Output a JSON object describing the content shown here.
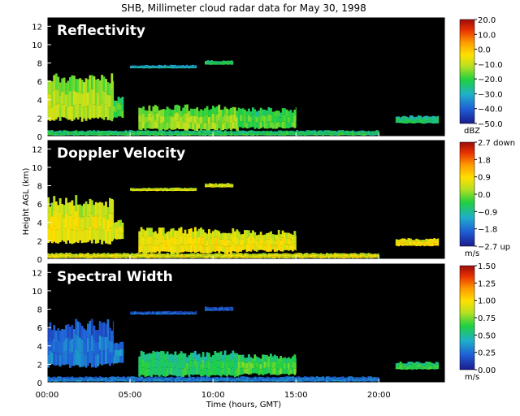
{
  "chart_data": {
    "type": "heatmap",
    "title": "SHB, Millimeter cloud radar data for May 30, 1998",
    "xlabel": "Time (hours, GMT)",
    "ylabel": "Height AGL (km)",
    "x_ticks": [
      "00:00",
      "05:00",
      "10:00",
      "15:00",
      "20:00"
    ],
    "x_tick_hours": [
      0,
      5,
      10,
      15,
      20
    ],
    "xlim": [
      0,
      24
    ],
    "ylim": [
      0,
      13
    ],
    "y_ticks": [
      "0",
      "2",
      "4",
      "6",
      "8",
      "10",
      "12"
    ],
    "background": "#000000",
    "panels": [
      {
        "name": "Reflectivity",
        "unit": "dBZ",
        "colorbar_ticks": [
          "20.0",
          "10.0",
          "0.0",
          "−10.0",
          "−20.0",
          "−30.0",
          "−40.0",
          "−50.0"
        ],
        "range": [
          -50,
          20
        ],
        "regions": [
          {
            "t0": 0.0,
            "t1": 4.0,
            "h0": 1.6,
            "h1": 7.0,
            "level": 0.55
          },
          {
            "t0": 4.0,
            "t1": 4.6,
            "h0": 2.0,
            "h1": 4.5,
            "level": 0.45
          },
          {
            "t0": 5.5,
            "t1": 11.5,
            "h0": 0.6,
            "h1": 3.5,
            "level": 0.52
          },
          {
            "t0": 11.5,
            "t1": 15.0,
            "h0": 0.8,
            "h1": 3.2,
            "level": 0.45
          },
          {
            "t0": 5.0,
            "t1": 9.0,
            "h0": 7.4,
            "h1": 7.8,
            "level": 0.3
          },
          {
            "t0": 9.5,
            "t1": 11.2,
            "h0": 7.8,
            "h1": 8.3,
            "level": 0.42
          },
          {
            "t0": 0.0,
            "t1": 20.0,
            "h0": 0.1,
            "h1": 0.7,
            "level": 0.4
          },
          {
            "t0": 21.0,
            "t1": 23.6,
            "h0": 1.4,
            "h1": 2.3,
            "level": 0.38
          }
        ]
      },
      {
        "name": "Doppler Velocity",
        "unit": "m/s",
        "colorbar_ticks": [
          "2.7 down",
          "1.8",
          "0.9",
          "0.0",
          "−0.9",
          "−1.8",
          "−2.7 up"
        ],
        "range": [
          -2.7,
          2.7
        ],
        "regions": [
          {
            "t0": 0.0,
            "t1": 4.0,
            "h0": 1.6,
            "h1": 7.0,
            "level": 0.62
          },
          {
            "t0": 4.0,
            "t1": 4.6,
            "h0": 2.0,
            "h1": 4.5,
            "level": 0.6
          },
          {
            "t0": 5.5,
            "t1": 11.5,
            "h0": 0.6,
            "h1": 3.5,
            "level": 0.64
          },
          {
            "t0": 11.5,
            "t1": 15.0,
            "h0": 0.8,
            "h1": 3.2,
            "level": 0.63
          },
          {
            "t0": 5.0,
            "t1": 9.0,
            "h0": 7.4,
            "h1": 7.8,
            "level": 0.6
          },
          {
            "t0": 9.5,
            "t1": 11.2,
            "h0": 7.8,
            "h1": 8.3,
            "level": 0.6
          },
          {
            "t0": 0.0,
            "t1": 20.0,
            "h0": 0.1,
            "h1": 0.7,
            "level": 0.62
          },
          {
            "t0": 21.0,
            "t1": 23.6,
            "h0": 1.4,
            "h1": 2.3,
            "level": 0.66
          }
        ]
      },
      {
        "name": "Spectral Width",
        "unit": "m/s",
        "colorbar_ticks": [
          "1.50",
          "1.25",
          "1.00",
          "0.75",
          "0.50",
          "0.25",
          "0.00"
        ],
        "range": [
          0,
          1.5
        ],
        "regions": [
          {
            "t0": 0.0,
            "t1": 4.0,
            "h0": 1.6,
            "h1": 7.0,
            "level": 0.18
          },
          {
            "t0": 4.0,
            "t1": 4.6,
            "h0": 2.0,
            "h1": 4.5,
            "level": 0.2
          },
          {
            "t0": 5.5,
            "t1": 11.5,
            "h0": 0.6,
            "h1": 3.5,
            "level": 0.4
          },
          {
            "t0": 11.5,
            "t1": 15.0,
            "h0": 0.8,
            "h1": 3.2,
            "level": 0.45
          },
          {
            "t0": 5.0,
            "t1": 9.0,
            "h0": 7.4,
            "h1": 7.8,
            "level": 0.15
          },
          {
            "t0": 9.5,
            "t1": 11.2,
            "h0": 7.8,
            "h1": 8.3,
            "level": 0.15
          },
          {
            "t0": 0.0,
            "t1": 20.0,
            "h0": 0.1,
            "h1": 0.7,
            "level": 0.2
          },
          {
            "t0": 21.0,
            "t1": 23.6,
            "h0": 1.4,
            "h1": 2.3,
            "level": 0.42
          }
        ]
      }
    ]
  }
}
